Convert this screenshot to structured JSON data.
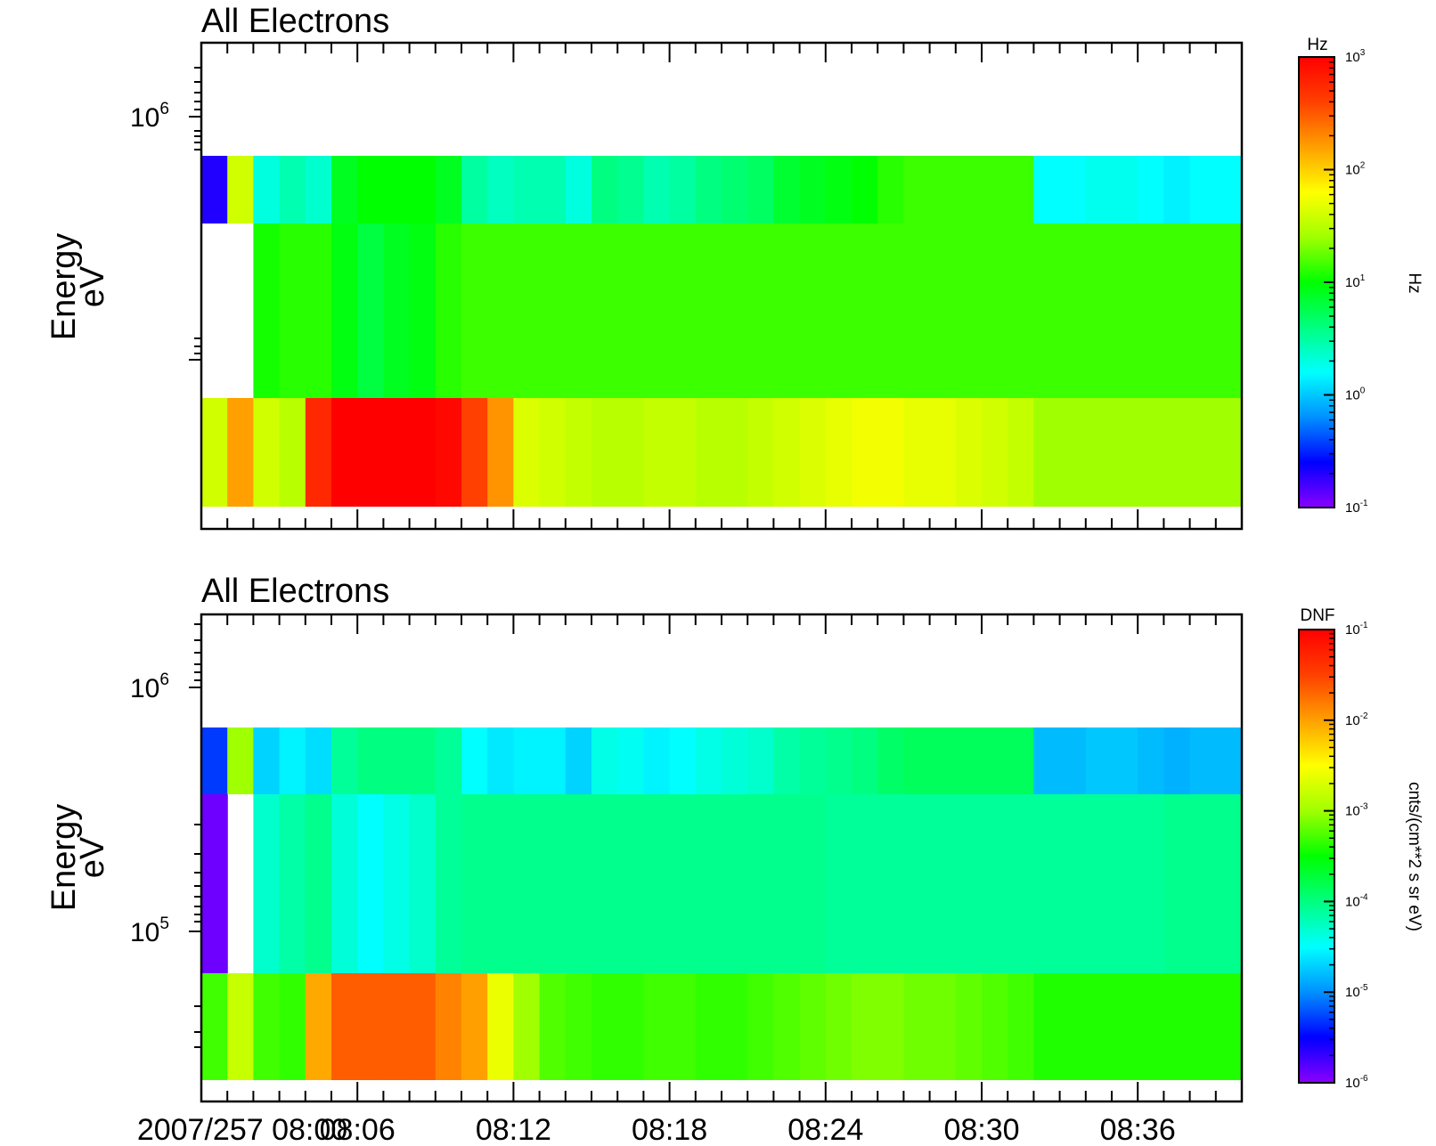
{
  "chart_data": [
    {
      "type": "heatmap",
      "title": "All Electrons",
      "ylabel_lines": [
        "Energy",
        "eV"
      ],
      "ytick_labels": [
        {
          "base": "10",
          "exp": "6"
        }
      ],
      "y_scale": "log",
      "x_start": "2007/257 08:00",
      "x_tick_labels": [
        "2007/257 08:00",
        "08:06",
        "08:12",
        "08:18",
        "08:24",
        "08:30",
        "08:36"
      ],
      "x_range_minutes": [
        0,
        40
      ],
      "rows": [
        {
          "energy_bin": "upper",
          "values": [
            -0.7,
            1.6,
            0.3,
            0.45,
            0.35,
            0.9,
            1.0,
            1.0,
            1.0,
            0.9,
            0.5,
            0.4,
            0.45,
            0.45,
            0.3,
            0.6,
            0.55,
            0.45,
            0.5,
            0.6,
            0.65,
            0.7,
            0.85,
            0.9,
            0.95,
            1.0,
            1.1,
            1.15,
            1.15,
            1.15,
            1.15,
            1.15,
            0.2,
            0.2,
            0.25,
            0.25,
            0.2,
            0.15,
            0.2,
            0.2
          ]
        },
        {
          "energy_bin": "middle",
          "values": [
            null,
            null,
            1.05,
            1.1,
            1.1,
            0.95,
            0.8,
            0.9,
            0.95,
            1.1,
            1.15,
            1.15,
            1.15,
            1.15,
            1.15,
            1.15,
            1.15,
            1.15,
            1.15,
            1.15,
            1.15,
            1.15,
            1.15,
            1.15,
            1.15,
            1.15,
            1.15,
            1.15,
            1.15,
            1.15,
            1.15,
            1.15,
            1.15,
            1.15,
            1.15,
            1.15,
            1.15,
            1.15,
            1.15,
            1.15
          ]
        },
        {
          "energy_bin": "lower",
          "values": [
            1.6,
            2.2,
            1.6,
            1.5,
            2.75,
            3.0,
            3.0,
            3.0,
            3.0,
            2.95,
            2.6,
            2.25,
            1.65,
            1.6,
            1.55,
            1.5,
            1.5,
            1.55,
            1.55,
            1.5,
            1.5,
            1.55,
            1.6,
            1.65,
            1.7,
            1.75,
            1.75,
            1.7,
            1.7,
            1.65,
            1.6,
            1.55,
            1.4,
            1.4,
            1.4,
            1.4,
            1.4,
            1.4,
            1.4,
            1.4
          ]
        }
      ],
      "colorbar": {
        "label": "Hz",
        "unit": "Hz",
        "ticks": [
          {
            "base": "10",
            "exp": "3"
          },
          {
            "base": "10",
            "exp": "2"
          },
          {
            "base": "10",
            "exp": "1"
          },
          {
            "base": "10",
            "exp": "0"
          },
          {
            "base": "10",
            "exp": "-1"
          }
        ],
        "log_range": [
          -1,
          3
        ]
      },
      "fill_value_unit": "log10 Hz"
    },
    {
      "type": "heatmap",
      "title": "All Electrons",
      "ylabel_lines": [
        "Energy",
        "eV"
      ],
      "ytick_labels": [
        {
          "base": "10",
          "exp": "6"
        },
        {
          "base": "10",
          "exp": "5"
        }
      ],
      "y_scale": "log",
      "x_start": "2007/257 08:00",
      "x_tick_labels": [
        "2007/257 08:00",
        "08:06",
        "08:12",
        "08:18",
        "08:24",
        "08:30",
        "08:36"
      ],
      "x_range_minutes": [
        0,
        40
      ],
      "rows": [
        {
          "energy_bin": "upper",
          "values": [
            -5.3,
            -3.0,
            -4.7,
            -4.55,
            -4.65,
            -4.1,
            -4.0,
            -4.0,
            -4.0,
            -4.1,
            -4.5,
            -4.6,
            -4.55,
            -4.55,
            -4.7,
            -4.4,
            -4.45,
            -4.55,
            -4.5,
            -4.4,
            -4.35,
            -4.3,
            -4.15,
            -4.1,
            -4.05,
            -4.0,
            -3.9,
            -3.85,
            -3.85,
            -3.85,
            -3.85,
            -3.85,
            -4.8,
            -4.8,
            -4.75,
            -4.75,
            -4.8,
            -4.85,
            -4.8,
            -4.8
          ]
        },
        {
          "energy_bin": "middle",
          "values": [
            -5.9,
            null,
            -4.3,
            -4.15,
            -4.05,
            -4.35,
            -4.5,
            -4.4,
            -4.3,
            -4.1,
            -4.05,
            -4.05,
            -4.05,
            -4.05,
            -4.05,
            -4.05,
            -4.05,
            -4.05,
            -4.05,
            -4.05,
            -4.05,
            -4.05,
            -4.05,
            -4.05,
            -4.1,
            -4.1,
            -4.1,
            -4.1,
            -4.1,
            -4.1,
            -4.1,
            -4.1,
            -4.1,
            -4.1,
            -4.1,
            -4.1,
            -4.1,
            -4.05,
            -4.05,
            -4.05
          ]
        },
        {
          "energy_bin": "lower",
          "values": [
            -3.3,
            -2.8,
            -3.3,
            -3.35,
            -2.05,
            -1.65,
            -1.65,
            -1.65,
            -1.65,
            -1.85,
            -2.0,
            -2.6,
            -3.0,
            -3.25,
            -3.3,
            -3.35,
            -3.35,
            -3.3,
            -3.3,
            -3.35,
            -3.35,
            -3.3,
            -3.25,
            -3.2,
            -3.15,
            -3.1,
            -3.1,
            -3.15,
            -3.15,
            -3.2,
            -3.25,
            -3.3,
            -3.4,
            -3.4,
            -3.4,
            -3.4,
            -3.4,
            -3.4,
            -3.4,
            -3.4
          ]
        }
      ],
      "colorbar": {
        "label": "DNF",
        "unit": "cnts/(cm**2 s sr eV)",
        "ticks": [
          {
            "base": "10",
            "exp": "-1"
          },
          {
            "base": "10",
            "exp": "-2"
          },
          {
            "base": "10",
            "exp": "-3"
          },
          {
            "base": "10",
            "exp": "-4"
          },
          {
            "base": "10",
            "exp": "-5"
          },
          {
            "base": "10",
            "exp": "-6"
          }
        ],
        "log_range": [
          -6,
          -1
        ]
      },
      "fill_value_unit": "log10 cnts/(cm**2 s sr eV)"
    }
  ],
  "colors": {
    "colormap": [
      "#8a00ff",
      "#0000ff",
      "#0090ff",
      "#00ffff",
      "#00ff80",
      "#00ff00",
      "#a0ff00",
      "#ffff00",
      "#ffa000",
      "#ff4000",
      "#ff0000"
    ],
    "frame": "#000000",
    "background": "#ffffff"
  }
}
